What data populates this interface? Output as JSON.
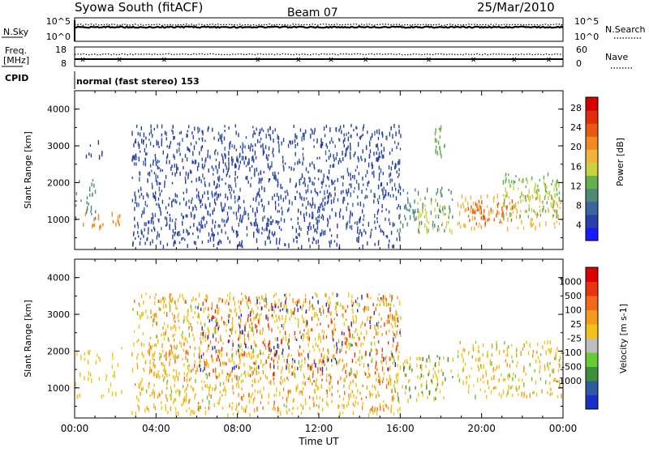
{
  "header": {
    "station": "Syowa South (fitACF)",
    "beam": "Beam 07",
    "date": "25/Mar/2010"
  },
  "small_panels": {
    "nsky_label": "N.Sky",
    "nsky_ticks": [
      "10^5",
      "10^0"
    ],
    "nsearch_label": "N.Search",
    "nsearch_ticks": [
      "10^5",
      "10^0"
    ],
    "freq_label": "Freq.",
    "freq_unit": "[MHz]",
    "freq_ticks": [
      "18",
      "8"
    ],
    "nave_label": "Nave",
    "nave_ticks": [
      "60",
      "0"
    ],
    "cpid_label": "CPID",
    "cpid_text": "normal (fast stereo) 153"
  },
  "chart_data": [
    {
      "type": "heatmap",
      "title": "",
      "quantity": "Power",
      "ylabel": "Slant Range [km]",
      "xlabel": "",
      "ylim": [
        180,
        4500
      ],
      "xlim": [
        0,
        24
      ],
      "yticks": [
        1000,
        2000,
        3000,
        4000
      ],
      "colorbar": {
        "label": "Power [dB]",
        "ticks": [
          "4",
          "8",
          "12",
          "16",
          "20",
          "24",
          "28"
        ],
        "colors": [
          "#1a1aff",
          "#2a3fa8",
          "#3b64a0",
          "#4f8a78",
          "#63b04d",
          "#c9d23c",
          "#f2b43a",
          "#f28a20",
          "#e85a10",
          "#e02d0a",
          "#d40000"
        ]
      },
      "regions": [
        {
          "t0": 0.0,
          "t1": 1.0,
          "r0": 1000,
          "r1": 2200,
          "level": 3,
          "n": 24
        },
        {
          "t0": 0.4,
          "t1": 2.3,
          "r0": 780,
          "r1": 1250,
          "level": 7,
          "n": 20
        },
        {
          "t0": 0.5,
          "t1": 1.5,
          "r0": 2700,
          "r1": 3200,
          "level": 1,
          "n": 8
        },
        {
          "t0": 2.8,
          "t1": 16.0,
          "r0": 300,
          "r1": 3600,
          "level": 1,
          "n": 1100
        },
        {
          "t0": 2.8,
          "t1": 16.0,
          "r0": 600,
          "r1": 3500,
          "level": 2,
          "n": 250
        },
        {
          "t0": 15.8,
          "t1": 18.6,
          "r0": 700,
          "r1": 1900,
          "level": 3,
          "n": 70
        },
        {
          "t0": 16.8,
          "t1": 18.6,
          "r0": 700,
          "r1": 1600,
          "level": 5,
          "n": 40
        },
        {
          "t0": 17.5,
          "t1": 18.2,
          "r0": 2600,
          "r1": 3600,
          "level": 4,
          "n": 20
        },
        {
          "t0": 18.8,
          "t1": 23.9,
          "r0": 800,
          "r1": 1700,
          "level": 6,
          "n": 110
        },
        {
          "t0": 19.2,
          "t1": 21.5,
          "r0": 900,
          "r1": 1600,
          "level": 8,
          "n": 45
        },
        {
          "t0": 21.0,
          "t1": 23.9,
          "r0": 1100,
          "r1": 2300,
          "level": 4,
          "n": 70
        },
        {
          "t0": 21.0,
          "t1": 23.9,
          "r0": 1300,
          "r1": 2100,
          "level": 5,
          "n": 50
        }
      ]
    },
    {
      "type": "heatmap",
      "title": "",
      "quantity": "Velocity",
      "ylabel": "Slant Range [km]",
      "xlabel": "Time UT",
      "ylim": [
        180,
        4500
      ],
      "xlim": [
        0,
        24
      ],
      "yticks": [
        1000,
        2000,
        3000,
        4000
      ],
      "xticks": [
        "00:00",
        "04:00",
        "08:00",
        "12:00",
        "16:00",
        "20:00",
        "00:00"
      ],
      "colorbar": {
        "label": "Velocity [m s-1]",
        "ticks": [
          "1000",
          "500",
          "100",
          "25",
          "-25",
          "-100",
          "-500",
          "-1000"
        ],
        "colors": [
          "#1a2fc8",
          "#2d5aa0",
          "#3d8f3d",
          "#66cc33",
          "#bebebe",
          "#f2c21a",
          "#f29a1a",
          "#f2691a",
          "#e8350e",
          "#dd0000"
        ]
      },
      "regions": [
        {
          "t0": 0.0,
          "t1": 2.3,
          "r0": 800,
          "r1": 2200,
          "level": 5,
          "n": 40
        },
        {
          "t0": 2.8,
          "t1": 16.0,
          "r0": 300,
          "r1": 3600,
          "level": 5,
          "n": 800
        },
        {
          "t0": 2.8,
          "t1": 16.0,
          "r0": 400,
          "r1": 3600,
          "level": 6,
          "n": 300
        },
        {
          "t0": 2.8,
          "t1": 16.0,
          "r0": 400,
          "r1": 3600,
          "level": 7,
          "n": 150
        },
        {
          "t0": 6.0,
          "t1": 16.0,
          "r0": 1200,
          "r1": 3600,
          "level": 8,
          "n": 150
        },
        {
          "t0": 6.0,
          "t1": 16.0,
          "r0": 1500,
          "r1": 3600,
          "level": 0,
          "n": 110
        },
        {
          "t0": 3.0,
          "t1": 16.0,
          "r0": 500,
          "r1": 3500,
          "level": 3,
          "n": 80
        },
        {
          "t0": 15.8,
          "t1": 18.6,
          "r0": 700,
          "r1": 1900,
          "level": 5,
          "n": 60
        },
        {
          "t0": 15.8,
          "t1": 18.6,
          "r0": 700,
          "r1": 1900,
          "level": 2,
          "n": 30
        },
        {
          "t0": 18.8,
          "t1": 23.9,
          "r0": 800,
          "r1": 2300,
          "level": 5,
          "n": 120
        },
        {
          "t0": 18.8,
          "t1": 23.9,
          "r0": 800,
          "r1": 2300,
          "level": 6,
          "n": 50
        },
        {
          "t0": 18.8,
          "t1": 23.9,
          "r0": 800,
          "r1": 2300,
          "level": 3,
          "n": 30
        }
      ]
    }
  ]
}
